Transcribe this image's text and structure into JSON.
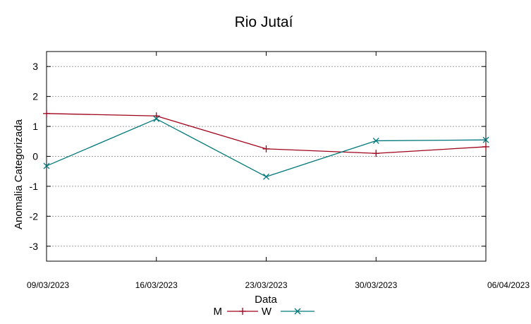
{
  "chart_data": {
    "type": "line",
    "title": "Rio Jutaí",
    "xlabel": "Data",
    "ylabel": "Anomalia Categorizada",
    "categories": [
      "09/03/2023",
      "16/03/2023",
      "23/03/2023",
      "30/03/2023",
      "06/04/2023"
    ],
    "yticks": [
      "3",
      "2",
      "1",
      "0",
      "-1",
      "-2",
      "-3"
    ],
    "ylim": [
      -3.5,
      3.5
    ],
    "grid": true,
    "legend_position": "bottom-center",
    "series": [
      {
        "name": "M",
        "values": [
          1.43,
          1.35,
          0.25,
          0.1,
          0.32
        ],
        "color": "#a0001a",
        "marker": "plus"
      },
      {
        "name": "W",
        "values": [
          -0.32,
          1.25,
          -0.68,
          0.52,
          0.55
        ],
        "color": "#00777a",
        "marker": "cross"
      }
    ]
  }
}
